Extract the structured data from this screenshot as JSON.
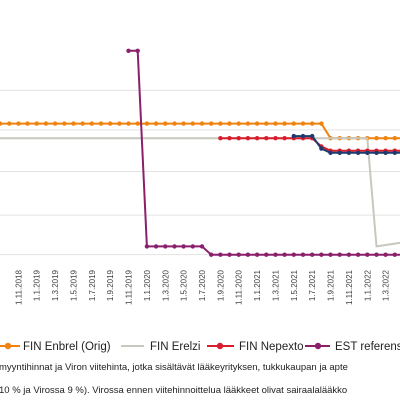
{
  "chart_data": {
    "type": "line",
    "x": [
      "1.11.2018",
      "1.1.2019",
      "1.3.2019",
      "1.5.2019",
      "1.7.2019",
      "1.9.2019",
      "1.11.2019",
      "1.1.2020",
      "1.3.2020",
      "1.5.2020",
      "1.7.2020",
      "1.9.2020",
      "1.11.2020",
      "1.1.2021",
      "1.3.2021",
      "1.5.2021",
      "1.7.2021",
      "1.9.2021",
      "1.11.2021",
      "1.1.2022",
      "1.3.2022"
    ],
    "x_start": "1.9.2018",
    "x_end": "1.5.2022",
    "ylim": [
      0,
      100
    ],
    "gridlines": [
      4,
      23,
      44,
      64,
      83
    ],
    "series": [
      {
        "name": "FIN Enbrel (Orig)",
        "color": "#f0820f",
        "marker": "dot",
        "points": [
          [
            "1.9.2018",
            67
          ],
          [
            "1.8.2021",
            67
          ],
          [
            "1.9.2021",
            60
          ],
          [
            "1.5.2022",
            60
          ]
        ]
      },
      {
        "name": "FIN Erelzi",
        "color": "#c8c8be",
        "marker": "none",
        "points": [
          [
            "1.9.2018",
            60
          ],
          [
            "1.1.2022",
            60
          ],
          [
            "1.2.2022",
            8
          ],
          [
            "1.5.2022",
            10
          ]
        ]
      },
      {
        "name": "FIN Nepexto",
        "color": "#d81e2c",
        "marker": "dot",
        "points": [
          [
            "1.9.2020",
            60
          ],
          [
            "1.7.2021",
            60
          ],
          [
            "1.8.2021",
            56
          ],
          [
            "1.9.2021",
            54
          ],
          [
            "1.5.2022",
            54
          ]
        ]
      },
      {
        "name": "EST referenssihinta",
        "color": "#8a1f6c",
        "marker": "dot",
        "points": [
          [
            "1.11.2019",
            102
          ],
          [
            "1.12.2019",
            102
          ],
          [
            "1.1.2020",
            8
          ],
          [
            "1.7.2020",
            8
          ],
          [
            "1.8.2020",
            4
          ],
          [
            "1.5.2022",
            4
          ]
        ]
      },
      {
        "name": "",
        "color": "#1e3a6e",
        "marker": "dot",
        "points": [
          [
            "1.5.2021",
            61
          ],
          [
            "1.7.2021",
            61
          ],
          [
            "1.8.2021",
            55
          ],
          [
            "1.9.2021",
            53
          ],
          [
            "1.5.2022",
            53
          ]
        ]
      }
    ]
  },
  "notes": [
    "myyntihinnat ja Viron viitehinta, jotka sisältävät lääkeyrityksen, tukkukaupan ja apte",
    "10 % ja Virossa 9 %). Virossa ennen viitehinnoittelua lääkkeet olivat sairaalalääkko"
  ]
}
